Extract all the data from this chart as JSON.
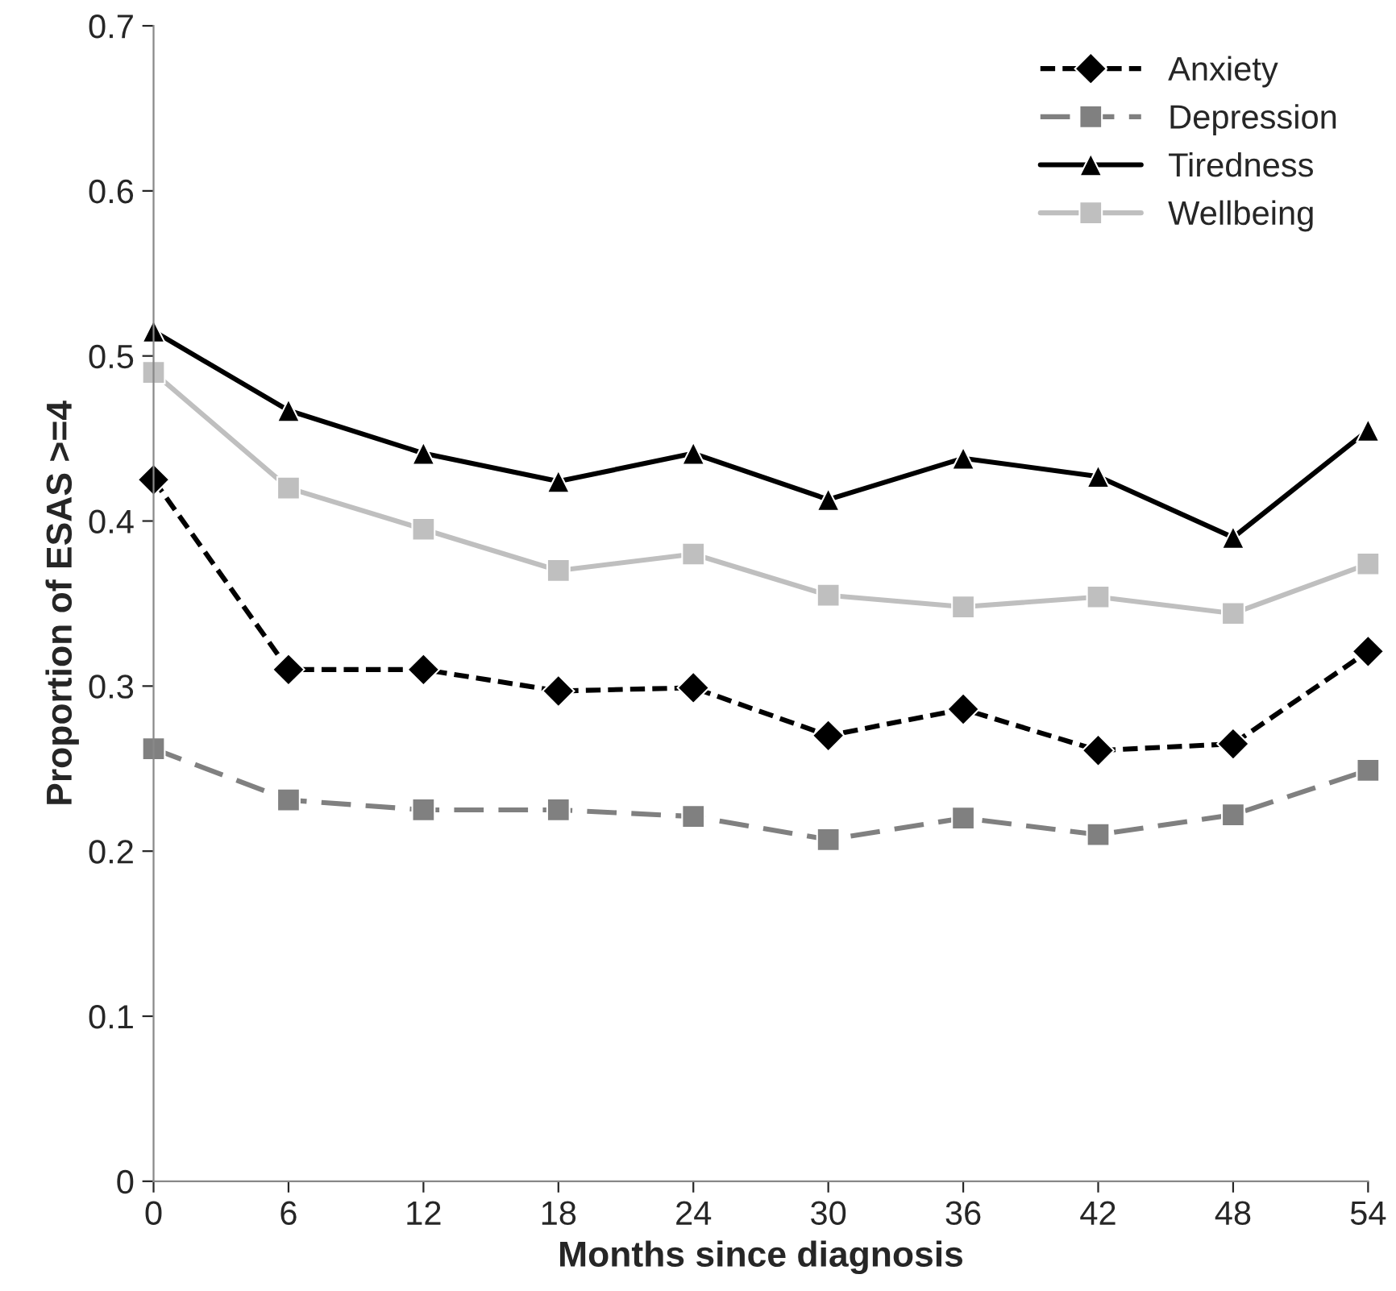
{
  "chart_data": {
    "type": "line",
    "xlabel": "Months since diagnosis",
    "ylabel": "Proportion of ESAS >=4",
    "x": [
      0,
      6,
      12,
      18,
      24,
      30,
      36,
      42,
      48,
      54
    ],
    "xlim": [
      0,
      54
    ],
    "xticks": [
      0,
      6,
      12,
      18,
      24,
      30,
      36,
      42,
      48,
      54
    ],
    "ylim": [
      0,
      0.7
    ],
    "yticks": [
      0,
      0.1,
      0.2,
      0.3,
      0.4,
      0.5,
      0.6,
      0.7
    ],
    "grid": false,
    "legend": "top right",
    "series": [
      {
        "name": "Anxiety",
        "color": "#000000",
        "marker": "diamond",
        "line_style": "dashed",
        "values": [
          0.425,
          0.31,
          0.31,
          0.297,
          0.299,
          0.27,
          0.286,
          0.261,
          0.265,
          0.321
        ]
      },
      {
        "name": "Depression",
        "color": "#808080",
        "marker": "square",
        "line_style": "dashed",
        "values": [
          0.262,
          0.231,
          0.225,
          0.225,
          0.221,
          0.207,
          0.22,
          0.21,
          0.222,
          0.249
        ]
      },
      {
        "name": "Tiredness",
        "color": "#000000",
        "marker": "triangle",
        "line_style": "solid",
        "values": [
          0.515,
          0.467,
          0.441,
          0.424,
          0.441,
          0.413,
          0.438,
          0.427,
          0.39,
          0.455
        ]
      },
      {
        "name": "Wellbeing",
        "color": "#bfbfbf",
        "marker": "square",
        "line_style": "solid",
        "values": [
          0.49,
          0.42,
          0.395,
          0.37,
          0.38,
          0.355,
          0.348,
          0.354,
          0.344,
          0.374
        ]
      }
    ]
  }
}
